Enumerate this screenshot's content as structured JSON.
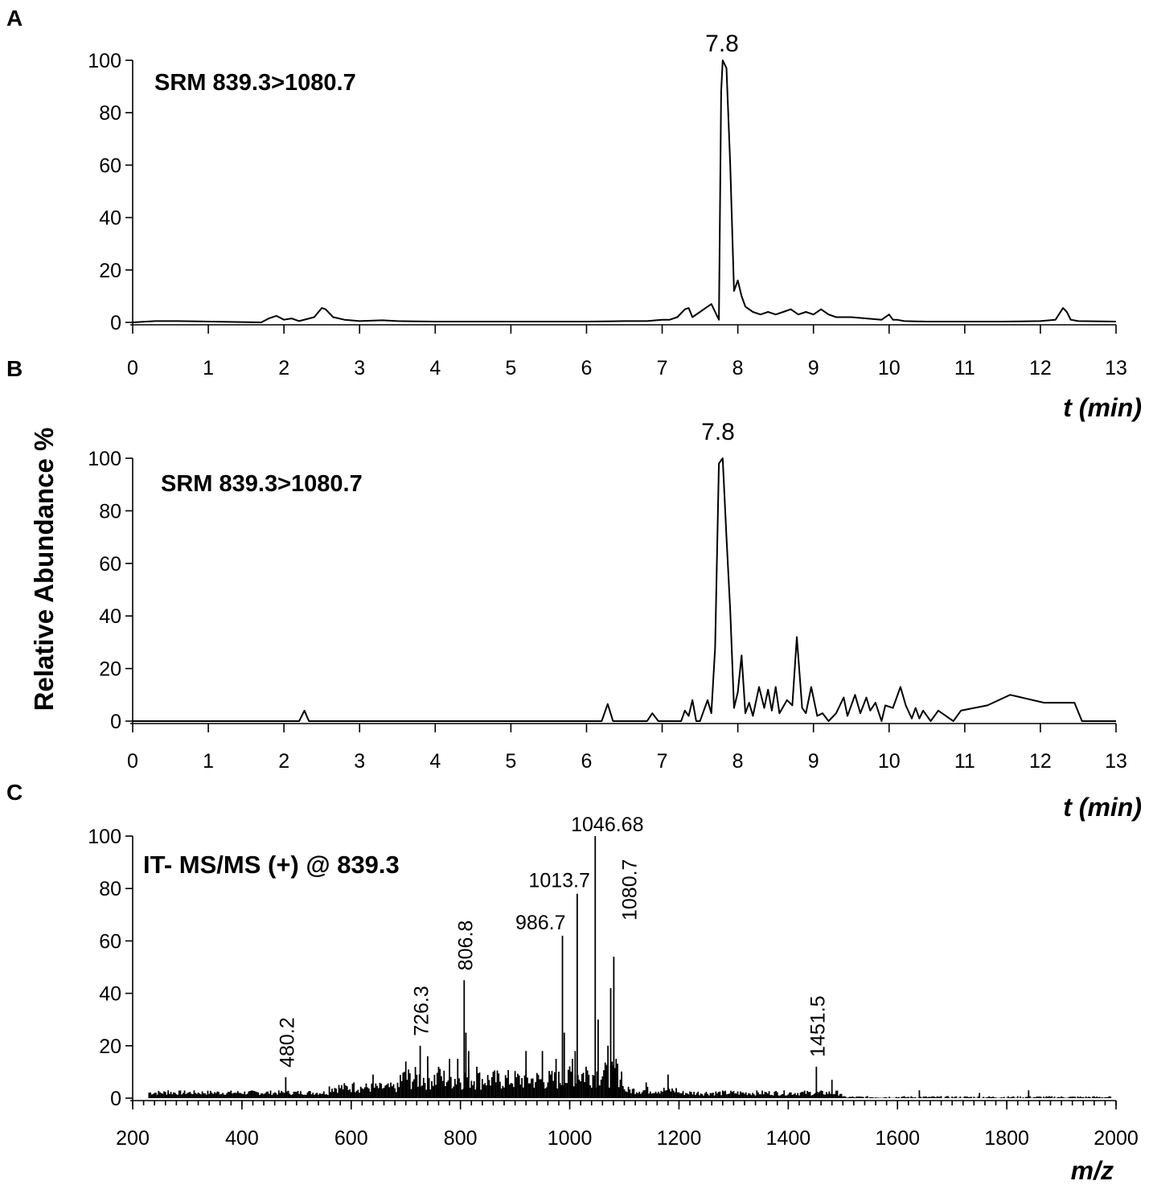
{
  "figure": {
    "ylabel": "Relative Abundance %"
  },
  "chart_data": [
    {
      "panel": "A",
      "type": "line",
      "annotation": "SRM 839.3>1080.7",
      "peak_label": "7.8",
      "xlabel": "t (min)",
      "xlim": [
        0,
        13
      ],
      "ylim": [
        0,
        100
      ],
      "xticks": [
        0,
        1,
        2,
        3,
        4,
        5,
        6,
        7,
        8,
        9,
        10,
        11,
        12,
        13
      ],
      "yticks": [
        0,
        20,
        40,
        60,
        80,
        100
      ],
      "x": [
        0,
        0.3,
        0.6,
        1.7,
        1.8,
        1.9,
        2.0,
        2.1,
        2.2,
        2.4,
        2.5,
        2.55,
        2.65,
        2.8,
        3.0,
        3.3,
        3.5,
        4.0,
        4.5,
        5.0,
        5.5,
        6.0,
        6.5,
        6.8,
        7.0,
        7.1,
        7.2,
        7.3,
        7.35,
        7.4,
        7.5,
        7.55,
        7.6,
        7.65,
        7.7,
        7.75,
        7.78,
        7.8,
        7.85,
        7.9,
        7.95,
        8.0,
        8.05,
        8.1,
        8.2,
        8.3,
        8.4,
        8.5,
        8.6,
        8.7,
        8.8,
        8.9,
        9.0,
        9.1,
        9.2,
        9.3,
        9.5,
        9.7,
        9.9,
        10.0,
        10.05,
        10.1,
        10.2,
        10.5,
        11.0,
        11.5,
        12.0,
        12.2,
        12.3,
        12.35,
        12.4,
        12.5,
        13.0
      ],
      "y": [
        0,
        0.5,
        0.5,
        0,
        1.5,
        2.5,
        1,
        1.5,
        0.5,
        2,
        5.5,
        5,
        2,
        1,
        0.5,
        0.8,
        0.5,
        0.3,
        0.3,
        0.3,
        0.3,
        0.3,
        0.5,
        0.5,
        1,
        1,
        2,
        5,
        5.5,
        2,
        4,
        5,
        6,
        7,
        4,
        1,
        88,
        100,
        97,
        60,
        12,
        16,
        10,
        6,
        4,
        3,
        4,
        3,
        4,
        5,
        3,
        4,
        3,
        5,
        3,
        2,
        2,
        1.5,
        1,
        3,
        1,
        1,
        0.5,
        0.3,
        0.3,
        0.3,
        0.5,
        1,
        5.5,
        4,
        1,
        0.5,
        0.3
      ]
    },
    {
      "panel": "B",
      "type": "line",
      "annotation": "SRM 839.3>1080.7",
      "peak_label": "7.8",
      "xlabel": "t (min)",
      "xlim": [
        0,
        13
      ],
      "ylim": [
        0,
        100
      ],
      "xticks": [
        0,
        1,
        2,
        3,
        4,
        5,
        6,
        7,
        8,
        9,
        10,
        11,
        12,
        13
      ],
      "yticks": [
        0,
        20,
        40,
        60,
        80,
        100
      ],
      "x": [
        0,
        2.2,
        2.27,
        2.33,
        6.2,
        6.28,
        6.35,
        6.8,
        6.87,
        6.95,
        7.25,
        7.3,
        7.35,
        7.4,
        7.45,
        7.5,
        7.6,
        7.65,
        7.7,
        7.75,
        7.8,
        7.85,
        7.9,
        7.95,
        8.0,
        8.05,
        8.1,
        8.15,
        8.2,
        8.28,
        8.35,
        8.4,
        8.45,
        8.5,
        8.55,
        8.65,
        8.72,
        8.78,
        8.85,
        8.9,
        8.97,
        9.05,
        9.12,
        9.2,
        9.3,
        9.4,
        9.45,
        9.55,
        9.62,
        9.7,
        9.75,
        9.82,
        9.9,
        9.95,
        10.05,
        10.15,
        10.22,
        10.3,
        10.35,
        10.4,
        10.45,
        10.55,
        10.65,
        10.85,
        10.95,
        11.3,
        11.6,
        12.05,
        12.45,
        12.55,
        13.0
      ],
      "y": [
        0,
        0,
        4,
        0,
        0,
        6.5,
        0,
        0,
        3,
        0,
        0,
        4,
        2,
        8,
        0,
        0,
        8,
        3,
        28,
        98,
        100,
        70,
        42,
        5,
        11,
        25,
        3,
        7,
        2,
        13,
        5,
        12,
        4,
        13,
        3,
        8,
        6,
        32,
        5,
        3,
        13,
        2,
        3,
        0,
        3,
        9,
        2,
        10,
        3,
        9,
        4,
        7,
        0,
        6,
        5,
        13,
        6,
        1,
        5,
        1,
        4,
        0,
        4,
        0,
        4,
        6,
        10,
        7,
        7,
        0,
        0
      ]
    },
    {
      "panel": "C",
      "type": "bar",
      "annotation": "IT- MS/MS (+) @ 839.3",
      "xlabel": "m/z",
      "xlim": [
        200,
        2000
      ],
      "ylim": [
        0,
        100
      ],
      "xticks": [
        200,
        400,
        600,
        800,
        1000,
        1200,
        1400,
        1600,
        1800,
        2000
      ],
      "yticks": [
        0,
        20,
        40,
        60,
        80,
        100
      ],
      "peaks": [
        {
          "mz": 480.2,
          "intensity": 8,
          "label": "480.2"
        },
        {
          "mz": 726.3,
          "intensity": 20,
          "label": "726.3"
        },
        {
          "mz": 806.8,
          "intensity": 45,
          "label": "806.8"
        },
        {
          "mz": 986.7,
          "intensity": 62,
          "label": "986.7"
        },
        {
          "mz": 1013.7,
          "intensity": 78,
          "label": "1013.7"
        },
        {
          "mz": 1046.68,
          "intensity": 100,
          "label": "1046.68"
        },
        {
          "mz": 1080.7,
          "intensity": 54,
          "label": "1080.7"
        },
        {
          "mz": 1451.5,
          "intensity": 12,
          "label": "1451.5"
        },
        {
          "mz": 810,
          "intensity": 25
        },
        {
          "mz": 815,
          "intensity": 18
        },
        {
          "mz": 795,
          "intensity": 15
        },
        {
          "mz": 780,
          "intensity": 15
        },
        {
          "mz": 740,
          "intensity": 16
        },
        {
          "mz": 700,
          "intensity": 14
        },
        {
          "mz": 760,
          "intensity": 12
        },
        {
          "mz": 830,
          "intensity": 12
        },
        {
          "mz": 920,
          "intensity": 18
        },
        {
          "mz": 950,
          "intensity": 18
        },
        {
          "mz": 975,
          "intensity": 15
        },
        {
          "mz": 990,
          "intensity": 25
        },
        {
          "mz": 1005,
          "intensity": 15
        },
        {
          "mz": 1010,
          "intensity": 18
        },
        {
          "mz": 1030,
          "intensity": 12
        },
        {
          "mz": 1052,
          "intensity": 30
        },
        {
          "mz": 1075,
          "intensity": 42
        },
        {
          "mz": 1070,
          "intensity": 20
        },
        {
          "mz": 1085,
          "intensity": 15
        },
        {
          "mz": 1140,
          "intensity": 6
        },
        {
          "mz": 1180,
          "intensity": 9
        },
        {
          "mz": 1480,
          "intensity": 7
        },
        {
          "mz": 1640,
          "intensity": 3
        },
        {
          "mz": 1750,
          "intensity": 2
        },
        {
          "mz": 1840,
          "intensity": 3
        },
        {
          "mz": 640,
          "intensity": 9
        },
        {
          "mz": 605,
          "intensity": 6
        },
        {
          "mz": 265,
          "intensity": 3
        }
      ]
    }
  ]
}
